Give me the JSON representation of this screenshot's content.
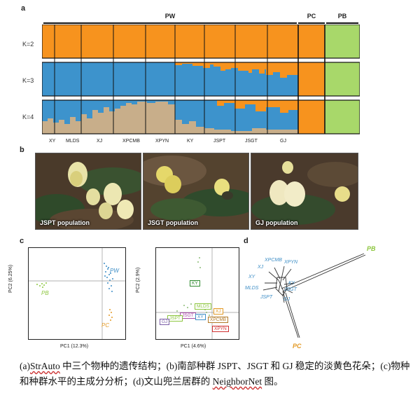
{
  "panel_labels": {
    "a": "a",
    "b": "b",
    "c": "c",
    "d": "d"
  },
  "groups": {
    "pw": "PW",
    "pc": "PC",
    "pb": "PB"
  },
  "k_labels": [
    "K=2",
    "K=3",
    "K=4"
  ],
  "populations": [
    "XY",
    "MLDS",
    "XJ",
    "XPCMB",
    "XPYN",
    "KY",
    "JSPT",
    "JSGT",
    "GJ"
  ],
  "colors": {
    "orange": "#f7931e",
    "blue": "#3d93cc",
    "green": "#a8d86a",
    "tan": "#c8ae8a",
    "pca_green": "#8dc63f",
    "pca_blue": "#3e8ec6",
    "pca_orange": "#e39a26"
  },
  "photos": [
    {
      "caption": "JSPT population"
    },
    {
      "caption": "JSGT population"
    },
    {
      "caption": "GJ population"
    }
  ],
  "pca1": {
    "xlabel": "PC1 (12.3%)",
    "ylabel": "PC2 (6.25%)",
    "labels": {
      "pw": "PW",
      "pb": "PB",
      "pc": "PC"
    }
  },
  "pca2": {
    "xlabel": "PC1 (4.6%)",
    "ylabel": "PC2 (2.9%)",
    "boxes": [
      "KY",
      "MLDS",
      "XJ",
      "JSGT",
      "JSPT",
      "GJ",
      "XY",
      "XPCMB",
      "XPYN"
    ]
  },
  "network": {
    "labels": [
      "PB",
      "XPCMB",
      "XPYN",
      "XJ",
      "XY",
      "MLDS",
      "KY",
      "JSGT",
      "JSPT",
      "GJ",
      "PC"
    ]
  },
  "caption": {
    "part1": "(a)",
    "u1": "StrAuto",
    "part2": " 中三个物种的遗传结构；(b)南部种群 JSPT、JSGT 和 GJ 稳定的淡黄色花朵；(c)物种和种群水平的主成分分析；(d)文山兜兰居群的 ",
    "u2": "NeighborNet",
    "part3": " 图。"
  }
}
